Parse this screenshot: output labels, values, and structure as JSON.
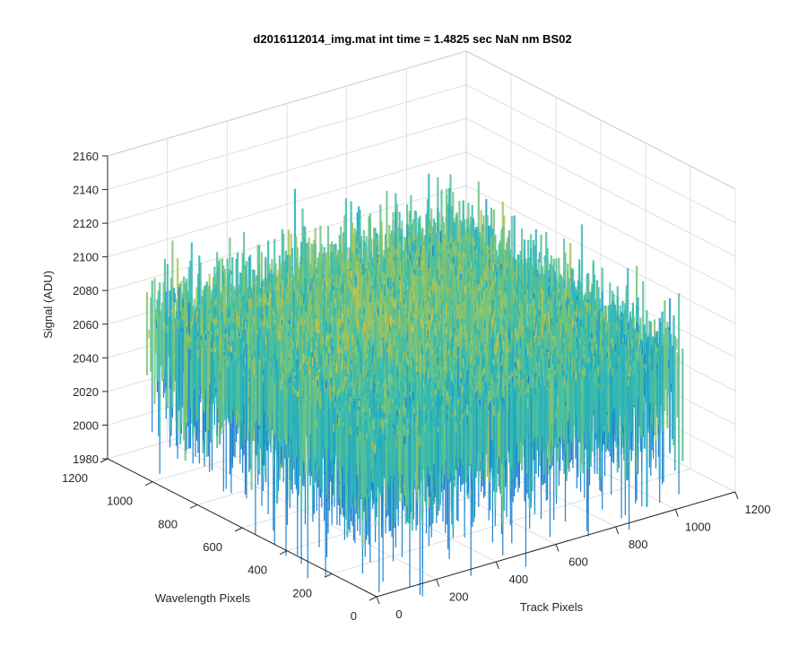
{
  "chart_data": {
    "type": "surface",
    "title": "d2016112014_img.mat int time = 1.4825 sec  NaN nm BS02",
    "xlabel": "Track Pixels",
    "ylabel": "Wavelength Pixels",
    "zlabel": "Signal (ADU)",
    "xlim": [
      0,
      1200
    ],
    "ylim": [
      0,
      1200
    ],
    "zlim": [
      1980,
      2160
    ],
    "x_ticks": [
      "0",
      "200",
      "400",
      "600",
      "800",
      "1000",
      "1200"
    ],
    "y_ticks": [
      "0",
      "200",
      "400",
      "600",
      "800",
      "1000",
      "1200"
    ],
    "z_ticks": [
      "1980",
      "2000",
      "2020",
      "2040",
      "2060",
      "2080",
      "2100",
      "2120",
      "2140",
      "2160"
    ],
    "data_extent": {
      "x": [
        0,
        1024
      ],
      "y": [
        0,
        1024
      ]
    },
    "signal_mean": 2065,
    "signal_range": [
      1975,
      2150
    ],
    "grid": true,
    "colormap": [
      "#1f77d4",
      "#1aa6c8",
      "#3fbfa8",
      "#8cc46a",
      "#c8c246",
      "#ecbf3a"
    ]
  }
}
